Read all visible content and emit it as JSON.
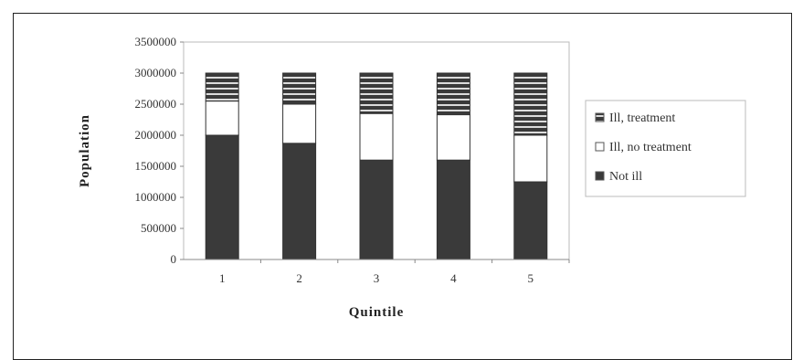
{
  "chart_data": {
    "type": "bar",
    "stacked": true,
    "categories": [
      "1",
      "2",
      "3",
      "4",
      "5"
    ],
    "series": [
      {
        "name": "Not ill",
        "values": [
          2000000,
          1870000,
          1600000,
          1600000,
          1250000
        ],
        "color": "#3a3a3a",
        "pattern": "solid"
      },
      {
        "name": "Ill, no treatment",
        "values": [
          550000,
          630000,
          750000,
          730000,
          750000
        ],
        "color": "#ffffff",
        "pattern": "none"
      },
      {
        "name": "Ill, treatment",
        "values": [
          450000,
          500000,
          650000,
          670000,
          1000000
        ],
        "color": "#3a3a3a",
        "pattern": "horizontal-stripes"
      }
    ],
    "xlabel": "Quintile",
    "ylabel": "Population",
    "ylim": [
      0,
      3500000
    ],
    "yticks": [
      "0",
      "500000",
      "1000000",
      "1500000",
      "2000000",
      "2500000",
      "3000000",
      "3500000"
    ],
    "grid": false,
    "legend_position": "right",
    "legend_order": [
      "Ill, treatment",
      "Ill, no treatment",
      "Not ill"
    ]
  }
}
